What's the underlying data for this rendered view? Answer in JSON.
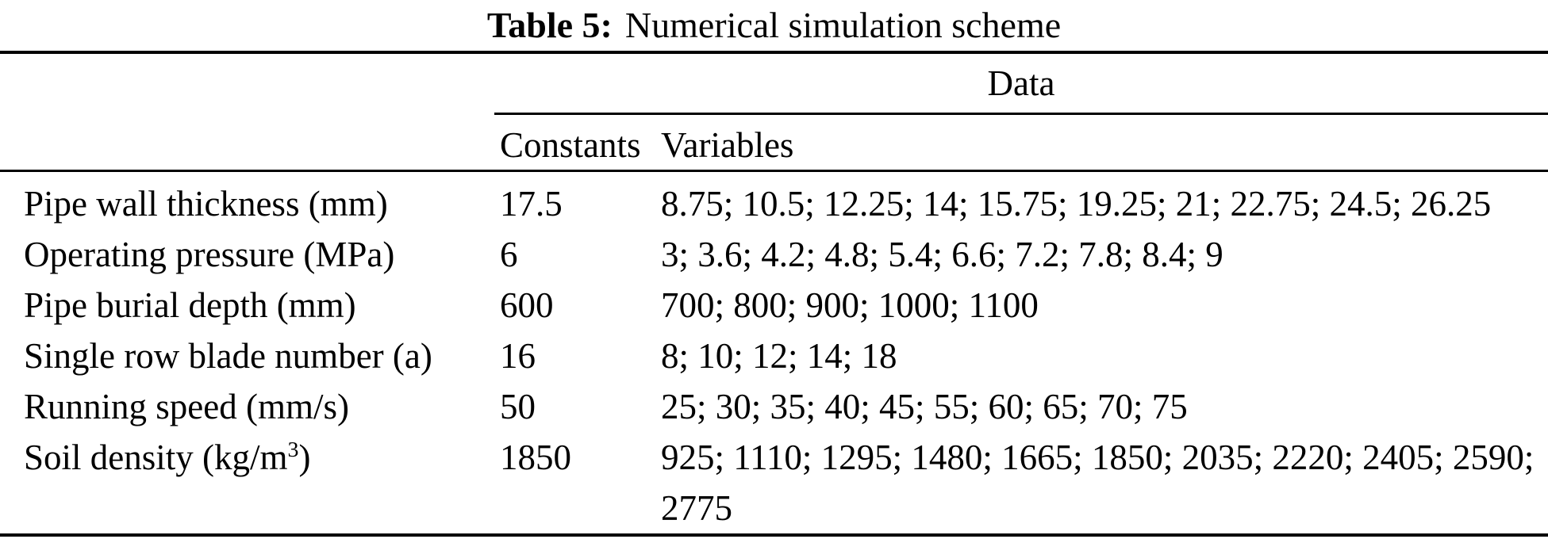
{
  "page": {
    "colors": {
      "background": "#ffffff",
      "text": "#000000",
      "rule": "#000000"
    },
    "caption": {
      "label": "Table 5:",
      "text": "Numerical simulation scheme"
    },
    "table": {
      "group_header": "Data",
      "column_headers": {
        "constants": "Constants",
        "variables": "Variables"
      },
      "rows": [
        {
          "parameter": "Pipe wall thickness (mm)",
          "constant": "17.5",
          "variables": "8.75; 10.5; 12.25; 14; 15.75; 19.25; 21; 22.75; 24.5; 26.25"
        },
        {
          "parameter": "Operating pressure (MPa)",
          "constant": "6",
          "variables": "3; 3.6; 4.2; 4.8; 5.4; 6.6; 7.2; 7.8; 8.4; 9"
        },
        {
          "parameter": "Pipe burial depth (mm)",
          "constant": "600",
          "variables": "700; 800; 900; 1000; 1100"
        },
        {
          "parameter": "Single row blade number (a)",
          "constant": "16",
          "variables": "8; 10; 12; 14; 18"
        },
        {
          "parameter": "Running speed (mm/s)",
          "constant": "50",
          "variables": "25; 30; 35; 40; 45; 55; 60; 65; 70; 75"
        },
        {
          "parameter": "Soil density (kg/m",
          "parameter_sup": "3",
          "parameter_close": ")",
          "constant": "1850",
          "variables": "925; 1110; 1295; 1480; 1665; 1850; 2035; 2220; 2405; 2590; 2775"
        }
      ]
    }
  }
}
